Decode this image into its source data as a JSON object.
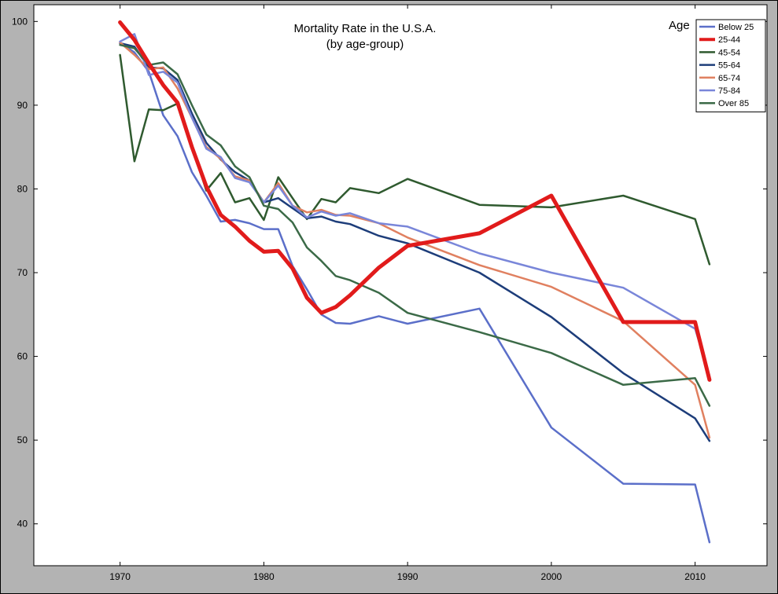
{
  "chart_data": {
    "type": "line",
    "title": "Mortality Rate in the U.S.A.",
    "subtitle": "(by age-group)",
    "xlabel": "",
    "ylabel": "",
    "xlim": [
      1964,
      2015
    ],
    "ylim": [
      35,
      102
    ],
    "xticks": [
      1970,
      1980,
      1990,
      2000,
      2010
    ],
    "yticks": [
      40,
      50,
      60,
      70,
      80,
      90,
      100
    ],
    "grid": false,
    "legend": {
      "title": "Age",
      "position": "top-right"
    },
    "series": [
      {
        "name": "Below 25",
        "color": "#5b6fc9",
        "width": 2.5,
        "points": [
          [
            1970,
            97.5
          ],
          [
            1971,
            96.3
          ],
          [
            1972,
            94.0
          ],
          [
            1973,
            88.8
          ],
          [
            1974,
            86.3
          ],
          [
            1975,
            82.0
          ],
          [
            1976,
            79.2
          ],
          [
            1977,
            76.1
          ],
          [
            1978,
            76.3
          ],
          [
            1979,
            75.9
          ],
          [
            1980,
            75.2
          ],
          [
            1981,
            75.2
          ],
          [
            1982,
            70.8
          ],
          [
            1983,
            68.0
          ],
          [
            1984,
            65.0
          ],
          [
            1985,
            64.0
          ],
          [
            1986,
            63.9
          ],
          [
            1988,
            64.8
          ],
          [
            1990,
            63.9
          ],
          [
            1995,
            65.7
          ],
          [
            2000,
            51.5
          ],
          [
            2005,
            44.8
          ],
          [
            2010,
            44.7
          ],
          [
            2011,
            37.8
          ]
        ]
      },
      {
        "name": "25-44",
        "color": "#e11b1b",
        "width": 5,
        "points": [
          [
            1970,
            99.9
          ],
          [
            1971,
            97.8
          ],
          [
            1972,
            95.0
          ],
          [
            1973,
            92.4
          ],
          [
            1974,
            90.3
          ],
          [
            1975,
            85.0
          ],
          [
            1976,
            80.3
          ],
          [
            1977,
            76.9
          ],
          [
            1978,
            75.5
          ],
          [
            1979,
            73.8
          ],
          [
            1980,
            72.5
          ],
          [
            1981,
            72.6
          ],
          [
            1982,
            70.5
          ],
          [
            1983,
            67.0
          ],
          [
            1984,
            65.2
          ],
          [
            1985,
            65.9
          ],
          [
            1986,
            67.3
          ],
          [
            1988,
            70.6
          ],
          [
            1990,
            73.2
          ],
          [
            1995,
            74.7
          ],
          [
            2000,
            79.2
          ],
          [
            2005,
            64.1
          ],
          [
            2010,
            64.1
          ],
          [
            2011,
            57.2
          ]
        ]
      },
      {
        "name": "45-54",
        "color": "#2f5a2f",
        "width": 2.5,
        "points": [
          [
            1970,
            96.0
          ],
          [
            1971,
            83.3
          ],
          [
            1972,
            89.5
          ],
          [
            1973,
            89.4
          ],
          [
            1974,
            90.2
          ],
          [
            1975,
            85.1
          ],
          [
            1976,
            79.8
          ],
          [
            1977,
            81.9
          ],
          [
            1978,
            78.4
          ],
          [
            1979,
            78.9
          ],
          [
            1980,
            76.3
          ],
          [
            1981,
            81.4
          ],
          [
            1982,
            78.9
          ],
          [
            1983,
            76.4
          ],
          [
            1984,
            78.8
          ],
          [
            1985,
            78.4
          ],
          [
            1986,
            80.1
          ],
          [
            1988,
            79.5
          ],
          [
            1990,
            81.2
          ],
          [
            1995,
            78.1
          ],
          [
            2000,
            77.8
          ],
          [
            2005,
            79.2
          ],
          [
            2010,
            76.4
          ],
          [
            2011,
            71.0
          ]
        ]
      },
      {
        "name": "55-64",
        "color": "#1d3d7a",
        "width": 2.5,
        "points": [
          [
            1970,
            97.4
          ],
          [
            1971,
            97.0
          ],
          [
            1972,
            94.5
          ],
          [
            1973,
            94.4
          ],
          [
            1974,
            93.0
          ],
          [
            1975,
            89.0
          ],
          [
            1976,
            85.5
          ],
          [
            1977,
            83.5
          ],
          [
            1978,
            82.0
          ],
          [
            1979,
            81.0
          ],
          [
            1980,
            78.4
          ],
          [
            1981,
            78.9
          ],
          [
            1982,
            77.7
          ],
          [
            1983,
            76.5
          ],
          [
            1984,
            76.7
          ],
          [
            1985,
            76.1
          ],
          [
            1986,
            75.8
          ],
          [
            1988,
            74.4
          ],
          [
            1990,
            73.5
          ],
          [
            1995,
            70.0
          ],
          [
            2000,
            64.7
          ],
          [
            2005,
            58.0
          ],
          [
            2010,
            52.6
          ],
          [
            2011,
            49.9
          ]
        ]
      },
      {
        "name": "65-74",
        "color": "#e08060",
        "width": 2.5,
        "points": [
          [
            1970,
            97.5
          ],
          [
            1971,
            96.0
          ],
          [
            1972,
            94.3
          ],
          [
            1973,
            94.5
          ],
          [
            1974,
            92.0
          ],
          [
            1975,
            88.5
          ],
          [
            1976,
            85.0
          ],
          [
            1977,
            83.6
          ],
          [
            1978,
            81.5
          ],
          [
            1979,
            81.0
          ],
          [
            1980,
            78.4
          ],
          [
            1981,
            80.7
          ],
          [
            1982,
            78.0
          ],
          [
            1983,
            77.2
          ],
          [
            1984,
            77.5
          ],
          [
            1985,
            76.9
          ],
          [
            1986,
            76.8
          ],
          [
            1988,
            75.9
          ],
          [
            1990,
            74.2
          ],
          [
            1995,
            70.9
          ],
          [
            2000,
            68.3
          ],
          [
            2005,
            64.2
          ],
          [
            2010,
            56.6
          ],
          [
            2011,
            50.3
          ]
        ]
      },
      {
        "name": "75-84",
        "color": "#7986d9",
        "width": 2.5,
        "points": [
          [
            1970,
            97.6
          ],
          [
            1971,
            98.5
          ],
          [
            1972,
            93.6
          ],
          [
            1973,
            94.0
          ],
          [
            1974,
            92.7
          ],
          [
            1975,
            88.5
          ],
          [
            1976,
            84.8
          ],
          [
            1977,
            83.8
          ],
          [
            1978,
            81.3
          ],
          [
            1979,
            80.8
          ],
          [
            1980,
            78.4
          ],
          [
            1981,
            80.4
          ],
          [
            1982,
            78.0
          ],
          [
            1983,
            76.6
          ],
          [
            1984,
            77.3
          ],
          [
            1985,
            76.8
          ],
          [
            1986,
            77.1
          ],
          [
            1988,
            75.9
          ],
          [
            1990,
            75.5
          ],
          [
            1995,
            72.3
          ],
          [
            2000,
            70.0
          ],
          [
            2005,
            68.2
          ],
          [
            2010,
            63.3
          ],
          [
            2011,
            57.7
          ]
        ]
      },
      {
        "name": "Over 85",
        "color": "#3b6a47",
        "width": 2.5,
        "points": [
          [
            1970,
            97.2
          ],
          [
            1971,
            96.8
          ],
          [
            1972,
            94.8
          ],
          [
            1973,
            95.1
          ],
          [
            1974,
            93.7
          ],
          [
            1975,
            90.0
          ],
          [
            1976,
            86.5
          ],
          [
            1977,
            85.2
          ],
          [
            1978,
            82.7
          ],
          [
            1979,
            81.4
          ],
          [
            1980,
            78.0
          ],
          [
            1981,
            77.6
          ],
          [
            1982,
            76.0
          ],
          [
            1983,
            73.0
          ],
          [
            1984,
            71.4
          ],
          [
            1985,
            69.6
          ],
          [
            1986,
            69.1
          ],
          [
            1988,
            67.6
          ],
          [
            1990,
            65.2
          ],
          [
            1995,
            62.9
          ],
          [
            2000,
            60.4
          ],
          [
            2005,
            56.6
          ],
          [
            2010,
            57.4
          ],
          [
            2011,
            54.1
          ]
        ]
      }
    ]
  }
}
